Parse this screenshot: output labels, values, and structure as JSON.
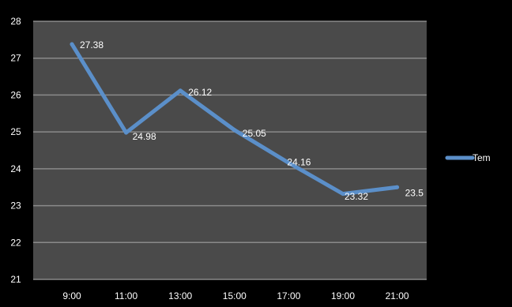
{
  "chart_data": {
    "type": "line",
    "categories": [
      "9:00",
      "11:00",
      "13:00",
      "15:00",
      "17:00",
      "19:00",
      "21:00"
    ],
    "series": [
      {
        "name": "Tem",
        "values": [
          27.38,
          24.98,
          26.12,
          25.05,
          24.16,
          23.32,
          23.5
        ],
        "data_labels": [
          "27.38",
          "24.98",
          "26.12",
          "25.05",
          "24.16",
          "23.32",
          "23.5"
        ],
        "color": "#5b8fc9"
      }
    ],
    "ylim": [
      21,
      28
    ],
    "y_ticks": [
      "21",
      "22",
      "23",
      "24",
      "25",
      "26",
      "27",
      "28"
    ],
    "grid": true,
    "legend_position": "right",
    "colors": {
      "background": "#000000",
      "plot_area": "#4a4a4a",
      "gridline": "#8a8a8a",
      "text": "#ffffff"
    }
  }
}
